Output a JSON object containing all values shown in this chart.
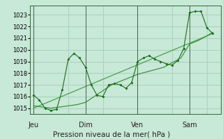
{
  "xlabel": "Pression niveau de la mer( hPa )",
  "bg_color": "#c8e8d8",
  "grid_color": "#aad4c0",
  "line_color_main": "#1a6b1a",
  "line_color_smooth": "#2d8b2d",
  "line_color_trend": "#3a9a3a",
  "ylim": [
    1014.5,
    1023.8
  ],
  "yticks": [
    1015,
    1016,
    1017,
    1018,
    1019,
    1020,
    1021,
    1022,
    1023
  ],
  "day_labels": [
    "Jeu",
    "Dim",
    "Ven",
    "Sam"
  ],
  "day_positions": [
    0.0,
    3.0,
    6.0,
    9.0
  ],
  "xlim": [
    -0.2,
    10.8
  ],
  "series1_x": [
    0.0,
    0.33,
    0.66,
    1.0,
    1.33,
    1.66,
    2.0,
    2.33,
    2.66,
    3.0,
    3.33,
    3.66,
    4.0,
    4.33,
    4.66,
    5.0,
    5.33,
    5.66,
    6.0,
    6.33,
    6.66,
    7.0,
    7.33,
    7.66,
    8.0,
    8.33,
    8.66,
    9.0,
    9.33,
    9.66,
    10.0,
    10.33
  ],
  "series1_y": [
    1016.1,
    1015.7,
    1015.0,
    1014.8,
    1014.9,
    1016.6,
    1019.2,
    1019.7,
    1019.3,
    1018.5,
    1017.0,
    1016.1,
    1016.0,
    1017.0,
    1017.1,
    1017.0,
    1016.7,
    1017.2,
    1019.0,
    1019.3,
    1019.5,
    1019.2,
    1019.0,
    1018.8,
    1018.7,
    1019.1,
    1020.1,
    1023.2,
    1023.3,
    1023.3,
    1021.9,
    1021.4
  ],
  "series2_x": [
    0.0,
    0.5,
    1.0,
    1.5,
    2.0,
    2.5,
    3.0,
    3.5,
    4.0,
    4.5,
    5.0,
    5.5,
    6.0,
    6.5,
    7.0,
    7.5,
    8.0,
    8.5,
    9.0,
    9.5,
    10.0,
    10.33
  ],
  "series2_y": [
    1015.2,
    1015.1,
    1015.0,
    1015.1,
    1015.2,
    1015.3,
    1015.5,
    1016.0,
    1016.5,
    1017.0,
    1017.3,
    1017.6,
    1017.9,
    1018.1,
    1018.3,
    1018.5,
    1018.9,
    1019.3,
    1020.5,
    1020.8,
    1021.2,
    1021.5
  ],
  "series3_x": [
    0.0,
    10.33
  ],
  "series3_y": [
    1015.0,
    1021.4
  ],
  "vline_positions": [
    0.0,
    3.0,
    6.0,
    9.0
  ]
}
